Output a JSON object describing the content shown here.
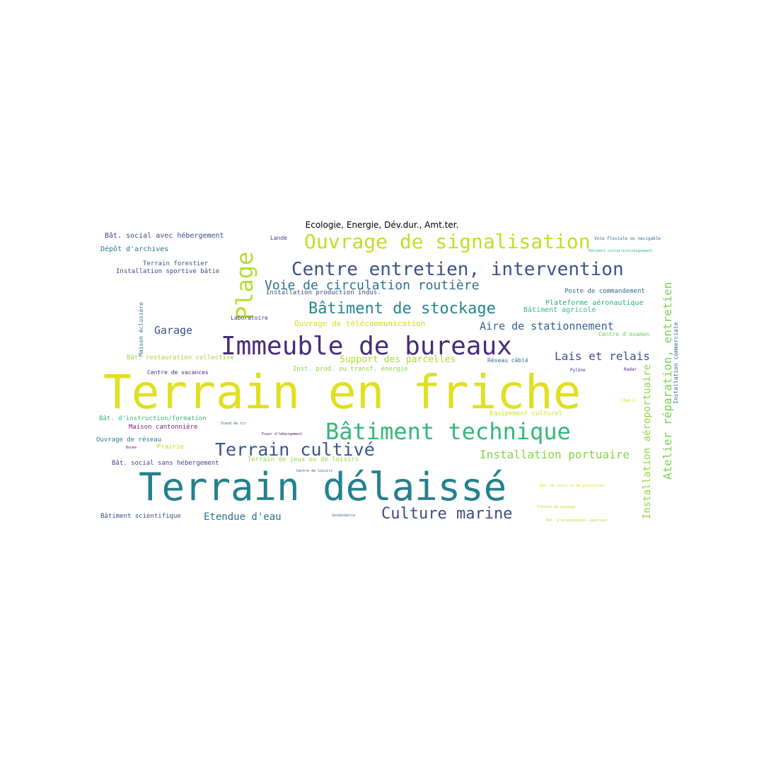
{
  "title": "Ecologie, Energie, Dév.dur., Amt.ter.",
  "colormap": {
    "purple": "#472c7a",
    "indigo": "#3b528b",
    "blue": "#2c728e",
    "teal": "#21918c",
    "green": "#27ad81",
    "lightgreen": "#5ec962",
    "lime": "#aadc32",
    "yellow": "#e1e21d"
  },
  "words": [
    {
      "text": "Terrain en friche",
      "color": "#dfe021"
    },
    {
      "text": "Terrain délaissé",
      "color": "#25808e"
    },
    {
      "text": "Immeuble de bureaux",
      "color": "#472c7a"
    },
    {
      "text": "Bâtiment technique",
      "color": "#35b779"
    },
    {
      "text": "Centre entretien, intervention",
      "color": "#3b528b"
    },
    {
      "text": "Ouvrage de signalisation",
      "color": "#c2df23"
    },
    {
      "text": "Plage",
      "color": "#b5de2b"
    },
    {
      "text": "Bâtiment de stockage",
      "color": "#25858e"
    },
    {
      "text": "Terrain cultivé",
      "color": "#39568c"
    },
    {
      "text": "Voie de circulation routière",
      "color": "#2c728e"
    },
    {
      "text": "Culture marine",
      "color": "#3e4a89"
    },
    {
      "text": "Atelier réparation, entretien",
      "color": "#7ad151"
    },
    {
      "text": "Installation portuaire",
      "color": "#86d549"
    },
    {
      "text": "Aire de stationnement",
      "color": "#33638d"
    },
    {
      "text": "Lais et relais",
      "color": "#3b528b"
    },
    {
      "text": "Installation aéroportuaire",
      "color": "#90d743"
    },
    {
      "text": "Garage",
      "color": "#3b528b"
    },
    {
      "text": "Etendue d'eau",
      "color": "#2d708e"
    },
    {
      "text": "Support des parcelles",
      "color": "#addc30"
    },
    {
      "text": "Bât. social avec hébergement",
      "color": "#414487"
    },
    {
      "text": "Dépôt d'archives",
      "color": "#2a788e"
    },
    {
      "text": "Terrain forestier",
      "color": "#3b528b"
    },
    {
      "text": "Installation sportive bâtie",
      "color": "#404688"
    },
    {
      "text": "Installation production indus.",
      "color": "#3e4989"
    },
    {
      "text": "Ouvrage de télécommunication",
      "color": "#d0e11c"
    },
    {
      "text": "Plateforme aéronautique",
      "color": "#29af7f"
    },
    {
      "text": "Bâtiment agricole",
      "color": "#3dbc74"
    },
    {
      "text": "Poste de commandement",
      "color": "#31688e"
    },
    {
      "text": "Laboratoire",
      "color": "#453781"
    },
    {
      "text": "Bât. restauration collective",
      "color": "#9bd93c"
    },
    {
      "text": "Inst. prod. ou transf. énergie",
      "color": "#8bd646"
    },
    {
      "text": "Centre de vacances",
      "color": "#472c7a"
    },
    {
      "text": "Bât. d'instruction/formation",
      "color": "#35b779"
    },
    {
      "text": "Maison cantonnière",
      "color": "#6f1f7a"
    },
    {
      "text": "Ouvrage de réseau",
      "color": "#2a788e"
    },
    {
      "text": "Prairie",
      "color": "#bddf26"
    },
    {
      "text": "Terrain de jeux ou de loisirs",
      "color": "#95d840"
    },
    {
      "text": "Bât. social sans hébergement",
      "color": "#414487"
    },
    {
      "text": "Bâtiment scientifique",
      "color": "#3e4a89"
    },
    {
      "text": "Equipement culturel",
      "color": "#d2e21b"
    },
    {
      "text": "Centre d'examen",
      "color": "#6ccd5a"
    },
    {
      "text": "Réseau câblé",
      "color": "#2f6b8e"
    },
    {
      "text": "Pylône",
      "color": "#472c7a"
    },
    {
      "text": "Radar",
      "color": "#481f70"
    },
    {
      "text": "Chenil",
      "color": "#d8e219"
    },
    {
      "text": "Lande",
      "color": "#443a83"
    },
    {
      "text": "Voie fluviale ou navigable",
      "color": "#31688e"
    },
    {
      "text": "Bâtiment scolaire/enseignement",
      "color": "#35b779"
    },
    {
      "text": "Maison éclusière",
      "color": "#2c728e"
    },
    {
      "text": "Installation commerciale",
      "color": "#31688e"
    },
    {
      "text": "Stand de tir",
      "color": "#31688e"
    },
    {
      "text": "Foyer d'hébergement",
      "color": "#471063"
    },
    {
      "text": "Bouée",
      "color": "#8f0f6b"
    },
    {
      "text": "Centre de loisirs",
      "color": "#39568c"
    },
    {
      "text": "Bât. de soins ou de prévention",
      "color": "#dde318"
    },
    {
      "text": "Station de pompage",
      "color": "#c8e020"
    },
    {
      "text": "Gendarmerie",
      "color": "#2c728e"
    },
    {
      "text": "Bât. d'enseignement supérieur",
      "color": "#bade28"
    }
  ]
}
